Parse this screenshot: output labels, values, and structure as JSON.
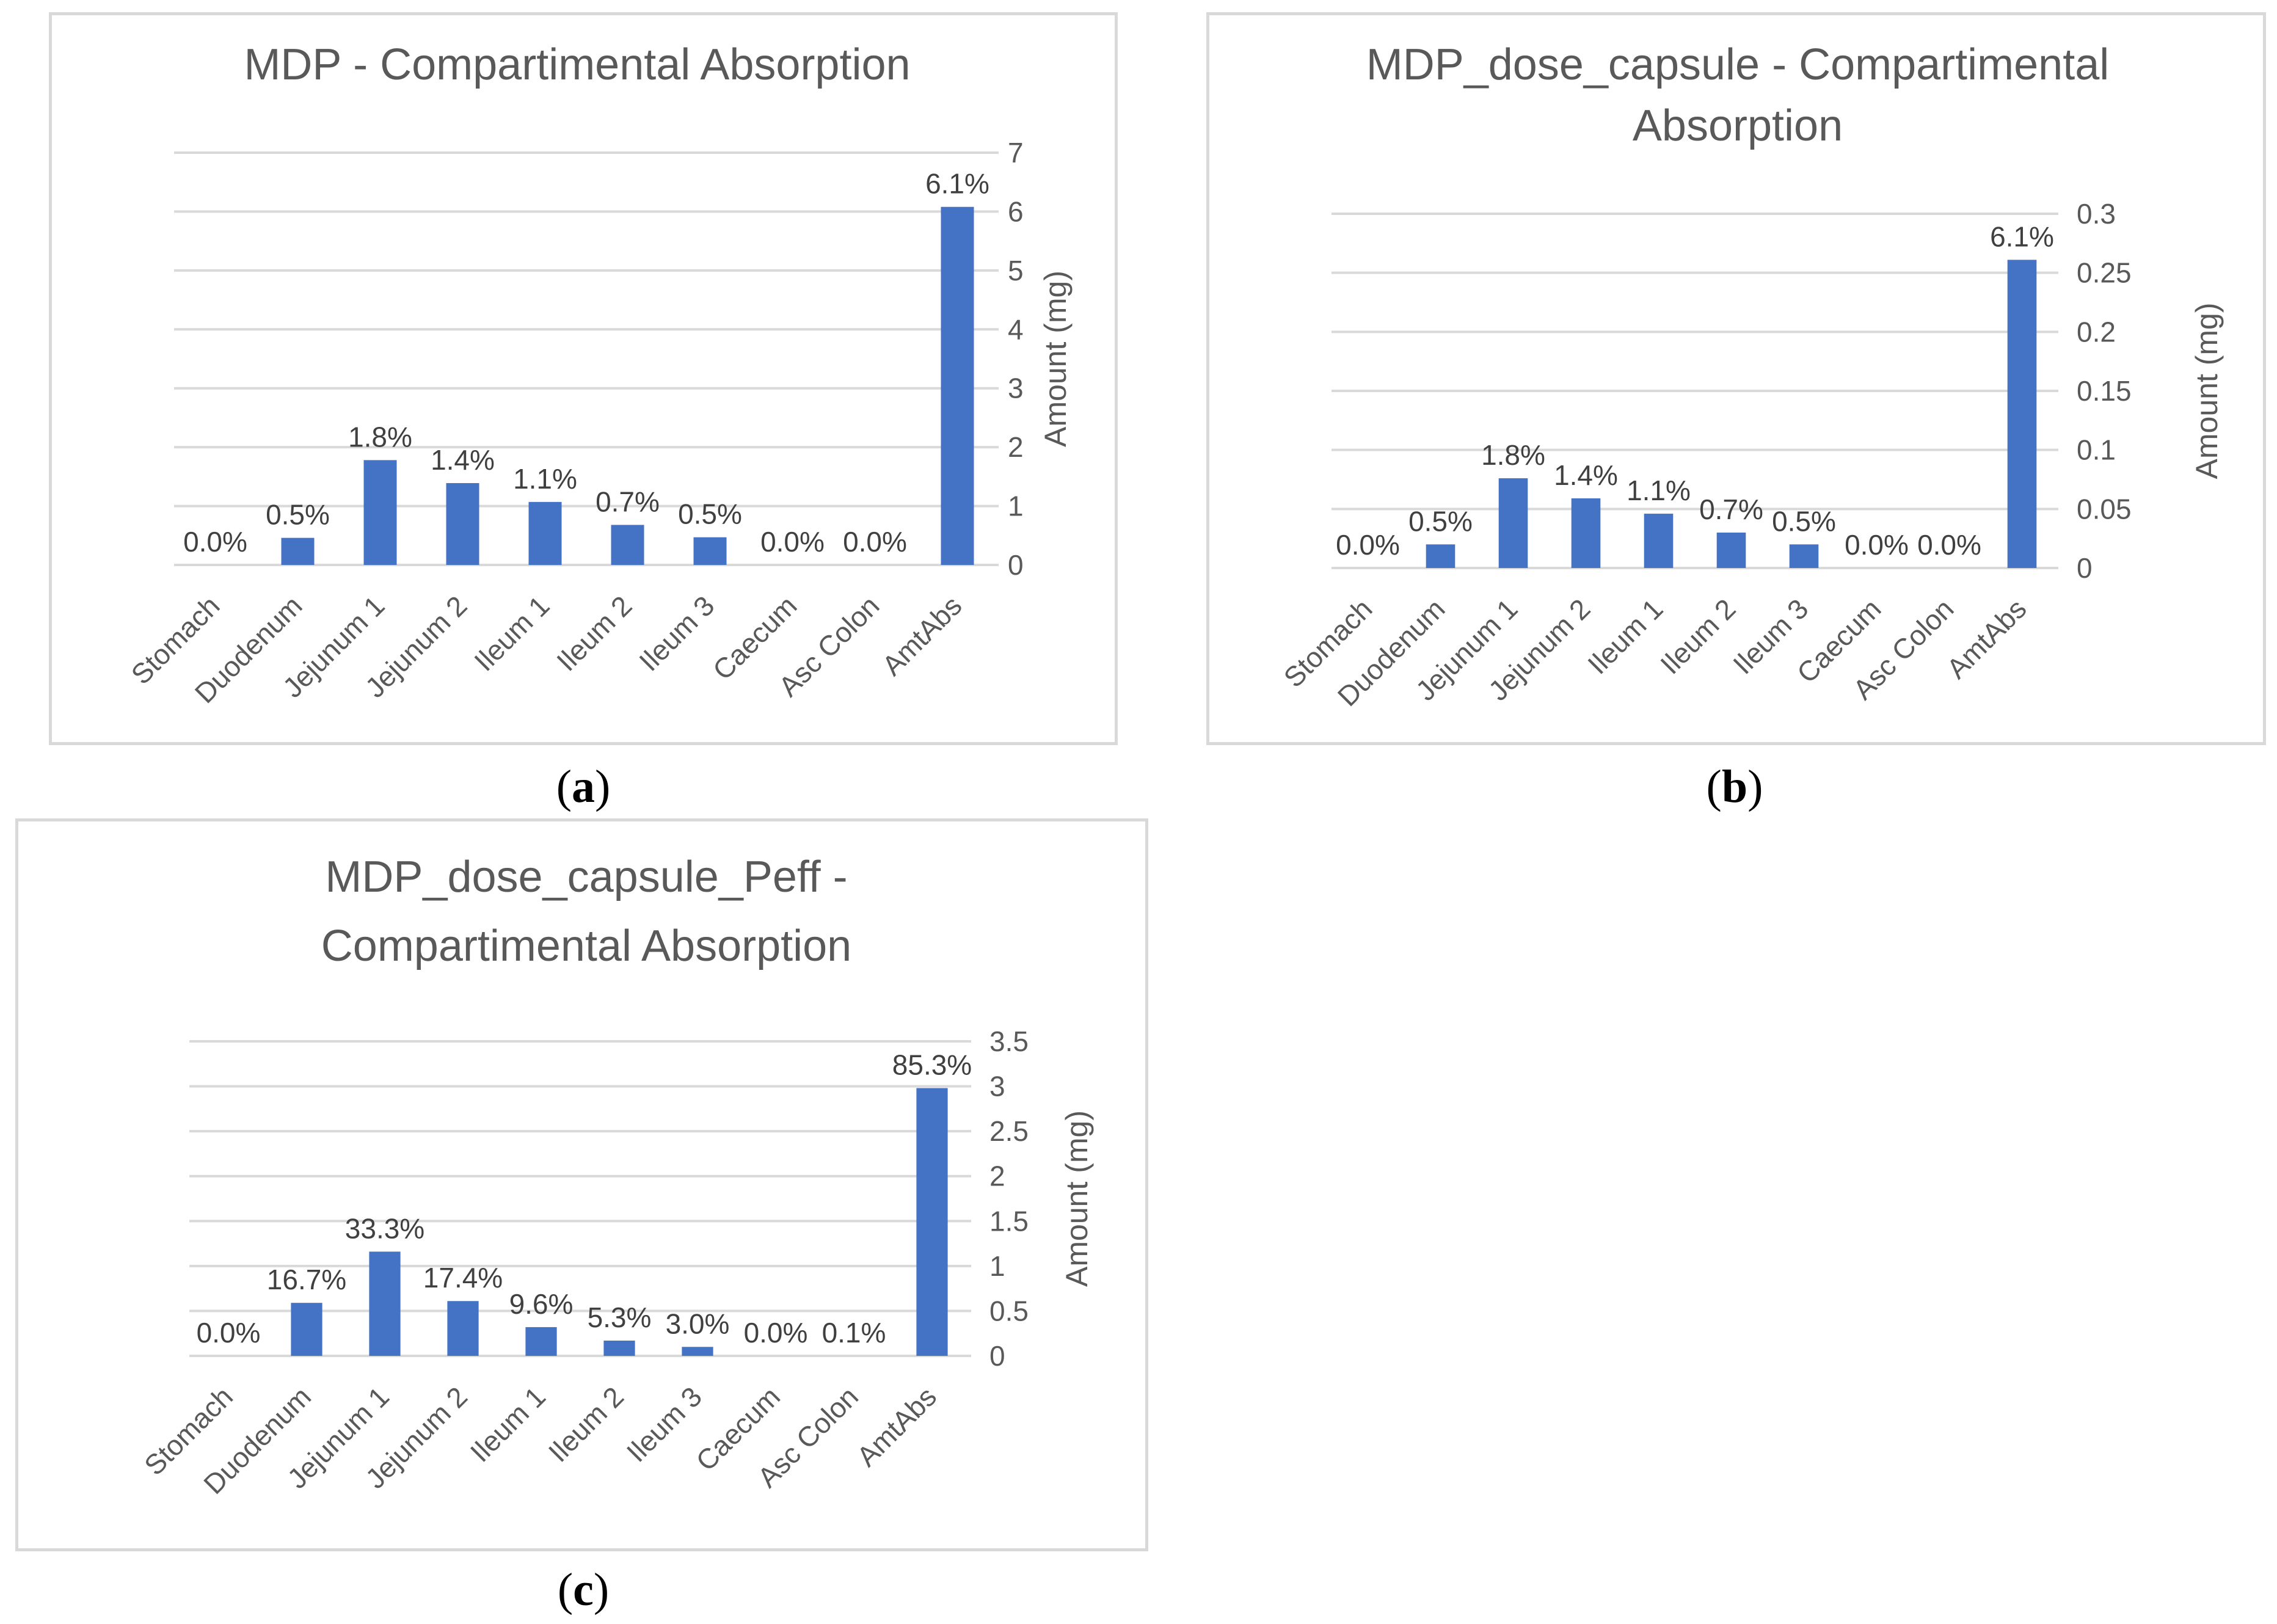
{
  "chart_data": [
    {
      "type": "bar",
      "title": "MDP - Compartimental Absorption",
      "ylabel": "Amount (mg)",
      "ylim": [
        0,
        7
      ],
      "yticks": [
        "0",
        "1",
        "2",
        "3",
        "4",
        "5",
        "6",
        "7"
      ],
      "yaxis_position": "right",
      "grid": true,
      "categories": [
        "Stomach",
        "Duodenum",
        "Jejunum 1",
        "Jejunum 2",
        "Ileum 1",
        "Ileum 2",
        "Ileum 3",
        "Caecum",
        "Asc Colon",
        "AmtAbs"
      ],
      "values": [
        0,
        0.46,
        1.78,
        1.39,
        1.07,
        0.68,
        0.47,
        0,
        0,
        6.08
      ],
      "data_labels": [
        "0.0%",
        "0.5%",
        "1.8%",
        "1.4%",
        "1.1%",
        "0.7%",
        "0.5%",
        "0.0%",
        "0.0%",
        "6.1%"
      ],
      "color": "#4472c4"
    },
    {
      "type": "bar",
      "title": "MDP_dose_capsule - Compartimental Absorption",
      "ylabel": "Amount (mg)",
      "ylim": [
        0,
        0.3
      ],
      "yticks": [
        "0",
        "0.05",
        "0.1",
        "0.15",
        "0.2",
        "0.25",
        "0.3"
      ],
      "yaxis_position": "right",
      "grid": true,
      "categories": [
        "Stomach",
        "Duodenum",
        "Jejunum 1",
        "Jejunum 2",
        "Ileum 1",
        "Ileum 2",
        "Ileum 3",
        "Caecum",
        "Asc Colon",
        "AmtAbs"
      ],
      "values": [
        0,
        0.02,
        0.076,
        0.059,
        0.046,
        0.03,
        0.02,
        0,
        0,
        0.261
      ],
      "data_labels": [
        "0.0%",
        "0.5%",
        "1.8%",
        "1.4%",
        "1.1%",
        "0.7%",
        "0.5%",
        "0.0%",
        "0.0%",
        "6.1%"
      ],
      "color": "#4472c4"
    },
    {
      "type": "bar",
      "title": "MDP_dose_capsule_Peff - Compartimental Absorption",
      "ylabel": "Amount (mg)",
      "ylim": [
        0,
        3.5
      ],
      "yticks": [
        "0",
        "0.5",
        "1",
        "1.5",
        "2",
        "2.5",
        "3",
        "3.5"
      ],
      "yaxis_position": "right",
      "grid": true,
      "categories": [
        "Stomach",
        "Duodenum",
        "Jejunum 1",
        "Jejunum 2",
        "Ileum 1",
        "Ileum 2",
        "Ileum 3",
        "Caecum",
        "Asc Colon",
        "AmtAbs"
      ],
      "values": [
        0,
        0.59,
        1.16,
        0.61,
        0.32,
        0.17,
        0.1,
        0,
        0,
        2.98
      ],
      "data_labels": [
        "0.0%",
        "16.7%",
        "33.3%",
        "17.4%",
        "9.6%",
        "5.3%",
        "3.0%",
        "0.0%",
        "0.1%",
        "85.3%"
      ],
      "color": "#4472c4"
    }
  ],
  "captions": [
    "a",
    "b",
    "c"
  ]
}
